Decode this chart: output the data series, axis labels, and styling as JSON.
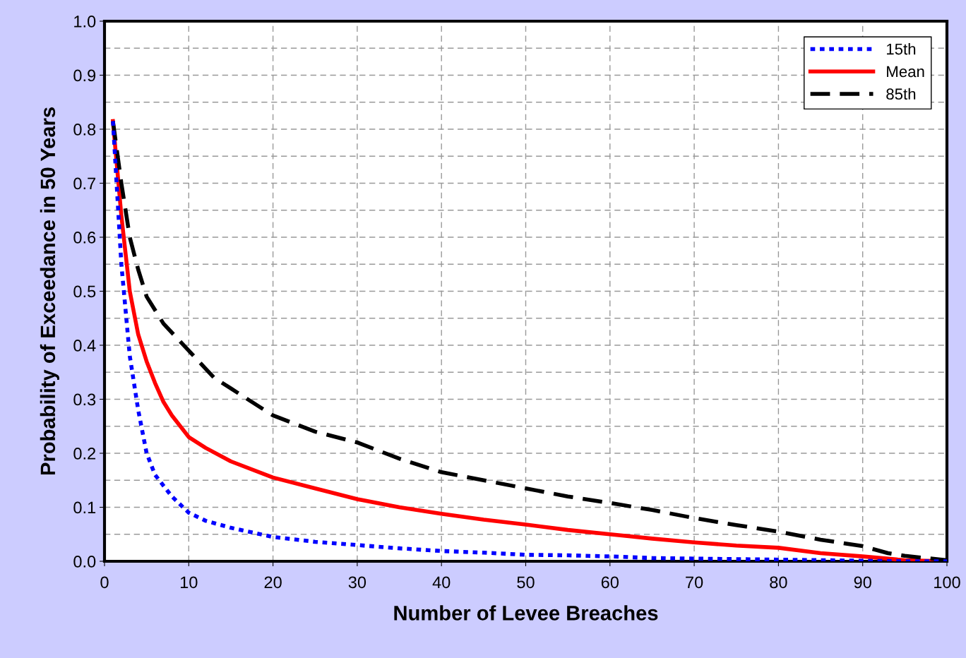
{
  "chart_data": {
    "type": "line",
    "xlabel": "Number of Levee Breaches",
    "ylabel": "Probability of Exceedance in 50 Years",
    "xlim": [
      0,
      100
    ],
    "xticks": [
      0,
      10,
      20,
      30,
      40,
      50,
      60,
      70,
      80,
      90,
      100
    ],
    "ylim": [
      0,
      1.0
    ],
    "yticks": [
      {
        "value": 0,
        "label": "0.0"
      },
      0.1,
      0.2,
      0.3,
      0.4,
      0.5,
      0.6,
      0.7,
      0.8,
      0.9,
      {
        "value": 1.0,
        "label": "1.0"
      }
    ],
    "grid": true,
    "legend": "top right",
    "series": [
      {
        "name": "15th",
        "color": "#0000ff",
        "line_style": "dotted",
        "x": [
          1,
          2,
          3,
          4,
          5,
          6,
          8,
          10,
          12,
          15,
          20,
          25,
          30,
          35,
          40,
          45,
          50,
          55,
          60,
          65,
          70,
          75,
          80,
          85,
          90,
          95,
          100
        ],
        "values": [
          0.815,
          0.55,
          0.38,
          0.28,
          0.2,
          0.16,
          0.12,
          0.09,
          0.075,
          0.062,
          0.045,
          0.036,
          0.03,
          0.024,
          0.019,
          0.016,
          0.012,
          0.011,
          0.009,
          0.006,
          0.005,
          0.004,
          0.003,
          0.002,
          0.001,
          0,
          0
        ]
      },
      {
        "name": "Mean",
        "color": "#ff0000",
        "line_style": "solid",
        "x": [
          1,
          2,
          3,
          4,
          5,
          6,
          7,
          8,
          10,
          12,
          15,
          20,
          25,
          30,
          35,
          40,
          45,
          50,
          55,
          60,
          65,
          70,
          75,
          80,
          85,
          90,
          95,
          100
        ],
        "values": [
          0.815,
          0.64,
          0.5,
          0.42,
          0.37,
          0.33,
          0.295,
          0.27,
          0.23,
          0.21,
          0.185,
          0.155,
          0.135,
          0.115,
          0.1,
          0.088,
          0.077,
          0.068,
          0.058,
          0.05,
          0.042,
          0.035,
          0.029,
          0.025,
          0.015,
          0.009,
          0.002,
          0
        ]
      },
      {
        "name": "85th",
        "color": "#000000",
        "line_style": "dashed",
        "x": [
          1,
          2,
          3,
          4,
          5,
          7,
          10,
          13,
          15,
          20,
          25,
          30,
          35,
          40,
          45,
          50,
          55,
          60,
          65,
          70,
          75,
          80,
          85,
          90,
          93,
          95,
          100
        ],
        "values": [
          0.815,
          0.7,
          0.6,
          0.54,
          0.49,
          0.44,
          0.39,
          0.34,
          0.32,
          0.27,
          0.24,
          0.22,
          0.19,
          0.165,
          0.15,
          0.135,
          0.12,
          0.108,
          0.095,
          0.08,
          0.067,
          0.055,
          0.04,
          0.028,
          0.015,
          0.01,
          0.002
        ]
      }
    ]
  }
}
